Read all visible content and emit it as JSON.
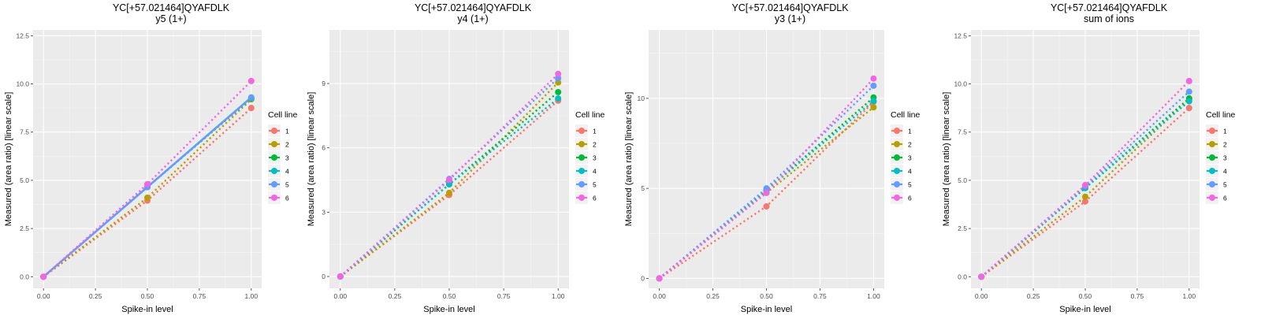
{
  "legend_title": "Cell line",
  "colors": {
    "1": "#F8766D",
    "2": "#B79F00",
    "3": "#00BA38",
    "4": "#00BFC4",
    "5": "#619CFF",
    "6": "#F564E3"
  },
  "chart_data": [
    {
      "type": "line",
      "title": "YC[+57.021464]QYAFDLK",
      "subtitle": "y5 (1+)",
      "xlabel": "Spike-in level",
      "ylabel": "Measured (area ratio) [linear scale]",
      "xlim": [
        -0.05,
        1.05
      ],
      "ylim": [
        -0.6,
        12.8
      ],
      "xticks": [
        0,
        0.25,
        0.5,
        0.75,
        1
      ],
      "xtick_labels": [
        "0.00",
        "0.25",
        "0.50",
        "0.75",
        "1.00"
      ],
      "yticks": [
        0,
        2.5,
        5,
        7.5,
        10,
        12.5
      ],
      "ytick_labels": [
        "0.0",
        "2.5",
        "5.0",
        "7.5",
        "10.0",
        "12.5"
      ],
      "grid": true,
      "legend": "right",
      "x": [
        0,
        0.5,
        1
      ],
      "series": [
        {
          "name": "1",
          "values": [
            0,
            3.95,
            8.75
          ],
          "line": "dotted"
        },
        {
          "name": "2",
          "values": [
            0,
            4.1,
            9.2
          ],
          "line": "dotted"
        },
        {
          "name": "3",
          "values": [
            0,
            4.65,
            9.25
          ],
          "line": "dotted"
        },
        {
          "name": "4",
          "values": [
            0,
            4.65,
            9.25
          ],
          "line": "dotted"
        },
        {
          "name": "5",
          "values": [
            0,
            4.65,
            9.3
          ],
          "line": "solid"
        },
        {
          "name": "6",
          "values": [
            0,
            4.8,
            10.15
          ],
          "line": "dotted"
        }
      ]
    },
    {
      "type": "line",
      "title": "YC[+57.021464]QYAFDLK",
      "subtitle": "y4 (1+)",
      "xlabel": "Spike-in level",
      "ylabel": "Measured (area ratio) [linear scale]",
      "xlim": [
        -0.05,
        1.05
      ],
      "ylim": [
        -0.55,
        11.5
      ],
      "xticks": [
        0,
        0.25,
        0.5,
        0.75,
        1
      ],
      "xtick_labels": [
        "0.00",
        "0.25",
        "0.50",
        "0.75",
        "1.00"
      ],
      "yticks": [
        0,
        3,
        6,
        9
      ],
      "ytick_labels": [
        "0",
        "3",
        "6",
        "9"
      ],
      "grid": true,
      "legend": "right",
      "x": [
        0,
        0.5,
        1
      ],
      "series": [
        {
          "name": "1",
          "values": [
            0,
            3.8,
            8.2
          ],
          "line": "dotted"
        },
        {
          "name": "2",
          "values": [
            0,
            3.9,
            9.05
          ],
          "line": "dotted"
        },
        {
          "name": "3",
          "values": [
            0,
            4.3,
            8.6
          ],
          "line": "dotted"
        },
        {
          "name": "4",
          "values": [
            0,
            4.3,
            8.3
          ],
          "line": "dotted"
        },
        {
          "name": "5",
          "values": [
            0,
            4.55,
            9.25
          ],
          "line": "dotted"
        },
        {
          "name": "6",
          "values": [
            0,
            4.5,
            9.45
          ],
          "line": "dotted"
        }
      ]
    },
    {
      "type": "line",
      "title": "YC[+57.021464]QYAFDLK",
      "subtitle": "y3 (1+)",
      "xlabel": "Spike-in level",
      "ylabel": "Measured (area ratio) [linear scale]",
      "xlim": [
        -0.05,
        1.05
      ],
      "ylim": [
        -0.55,
        13.8
      ],
      "xticks": [
        0,
        0.25,
        0.5,
        0.75,
        1
      ],
      "xtick_labels": [
        "0.00",
        "0.25",
        "0.50",
        "0.75",
        "1.00"
      ],
      "yticks": [
        0,
        5,
        10
      ],
      "ytick_labels": [
        "0",
        "5",
        "10"
      ],
      "grid": true,
      "legend": "right",
      "x": [
        0,
        0.5,
        1
      ],
      "series": [
        {
          "name": "1",
          "values": [
            0,
            4.0,
            9.8
          ],
          "line": "dotted"
        },
        {
          "name": "2",
          "values": [
            0,
            4.75,
            9.5
          ],
          "line": "dotted"
        },
        {
          "name": "3",
          "values": [
            0,
            4.9,
            10.05
          ],
          "line": "dotted"
        },
        {
          "name": "4",
          "values": [
            0,
            4.9,
            9.85
          ],
          "line": "dotted"
        },
        {
          "name": "5",
          "values": [
            0,
            5.0,
            10.7
          ],
          "line": "dotted"
        },
        {
          "name": "6",
          "values": [
            0,
            4.75,
            11.1
          ],
          "line": "dotted"
        }
      ]
    },
    {
      "type": "line",
      "title": "YC[+57.021464]QYAFDLK",
      "subtitle": "sum of ions",
      "xlabel": "Spike-in level",
      "ylabel": "Measured (area ratio) [linear scale]",
      "xlim": [
        -0.05,
        1.05
      ],
      "ylim": [
        -0.6,
        12.8
      ],
      "xticks": [
        0,
        0.25,
        0.5,
        0.75,
        1
      ],
      "xtick_labels": [
        "0.00",
        "0.25",
        "0.50",
        "0.75",
        "1.00"
      ],
      "yticks": [
        0,
        2.5,
        5,
        7.5,
        10,
        12.5
      ],
      "ytick_labels": [
        "0.0",
        "2.5",
        "5.0",
        "7.5",
        "10.0",
        "12.5"
      ],
      "grid": true,
      "legend": "right",
      "x": [
        0,
        0.5,
        1
      ],
      "series": [
        {
          "name": "1",
          "values": [
            0,
            3.9,
            8.75
          ],
          "line": "dotted"
        },
        {
          "name": "2",
          "values": [
            0,
            4.15,
            9.2
          ],
          "line": "dotted"
        },
        {
          "name": "3",
          "values": [
            0,
            4.6,
            9.25
          ],
          "line": "dotted"
        },
        {
          "name": "4",
          "values": [
            0,
            4.6,
            9.1
          ],
          "line": "dotted"
        },
        {
          "name": "5",
          "values": [
            0,
            4.7,
            9.6
          ],
          "line": "dotted"
        },
        {
          "name": "6",
          "values": [
            0,
            4.75,
            10.15
          ],
          "line": "dotted"
        }
      ]
    }
  ]
}
